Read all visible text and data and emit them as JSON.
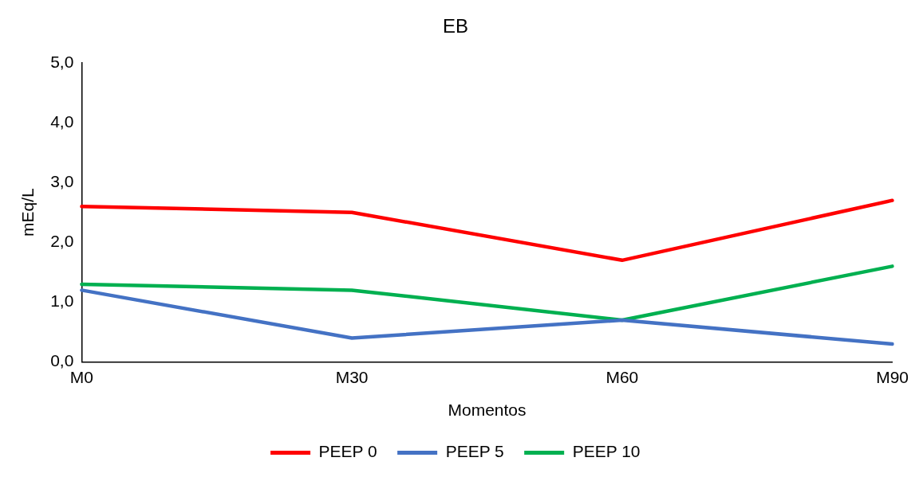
{
  "chart_data": {
    "type": "line",
    "title": "EB",
    "xlabel": "Momentos",
    "ylabel": "mEq/L",
    "categories": [
      "M0",
      "M30",
      "M60",
      "M90"
    ],
    "series": [
      {
        "name": "PEEP 0",
        "color": "#ff0000",
        "values": [
          2.6,
          2.5,
          1.7,
          2.7
        ]
      },
      {
        "name": "PEEP 5",
        "color": "#4472c4",
        "values": [
          1.2,
          0.4,
          0.7,
          0.3
        ]
      },
      {
        "name": "PEEP 10",
        "color": "#00b050",
        "values": [
          1.3,
          1.2,
          0.7,
          1.6
        ]
      }
    ],
    "ylim": [
      0,
      5
    ],
    "yticks": [
      {
        "value": 0,
        "label": "0,0"
      },
      {
        "value": 1,
        "label": "1,0"
      },
      {
        "value": 2,
        "label": "2,0"
      },
      {
        "value": 3,
        "label": "3,0"
      },
      {
        "value": 4,
        "label": "4,0"
      },
      {
        "value": 5,
        "label": "5,0"
      }
    ],
    "legend": "bottom",
    "marker": "none",
    "line_style": "solid"
  }
}
